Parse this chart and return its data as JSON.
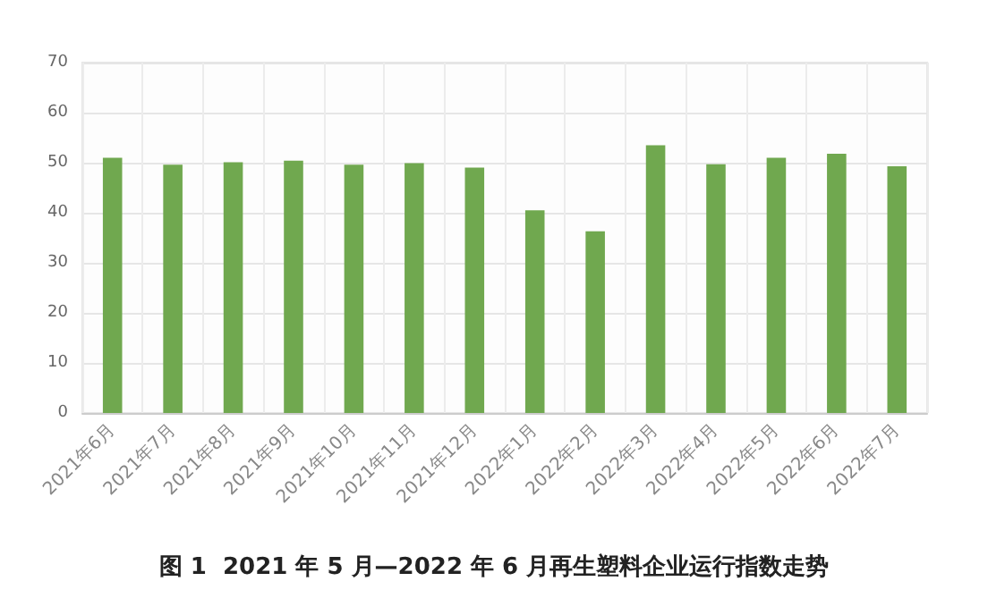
{
  "chart_data": {
    "type": "bar",
    "categories": [
      "2021年6月",
      "2021年7月",
      "2021年8月",
      "2021年9月",
      "2021年10月",
      "2021年11月",
      "2021年12月",
      "2022年1月",
      "2022年2月",
      "2022年3月",
      "2022年4月",
      "2022年5月",
      "2022年6月",
      "2022年7月"
    ],
    "values": [
      51.0,
      49.6,
      50.1,
      50.4,
      49.6,
      49.9,
      49.0,
      40.5,
      36.3,
      53.5,
      49.7,
      51.0,
      51.8,
      49.3
    ],
    "color": "#70a84f",
    "ylim": [
      0,
      70
    ],
    "yticks": [
      0,
      10,
      20,
      30,
      40,
      50,
      60,
      70
    ],
    "grid": true,
    "annotations": [
      "图 1  2021 年 5 月—2022 年 6 月再生塑料企业运行指数走势"
    ]
  }
}
